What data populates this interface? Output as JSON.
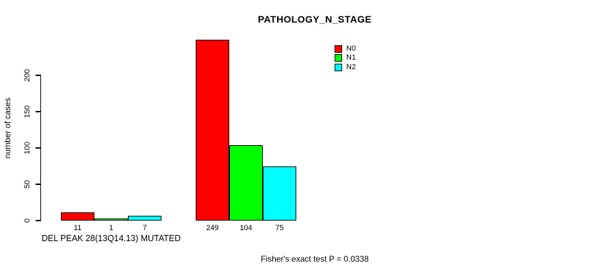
{
  "chart_data": {
    "type": "bar",
    "title": "PATHOLOGY_N_STAGE",
    "ylabel": "number of cases",
    "xlabel": "",
    "group_axis_label": "DEL PEAK 28(13Q14.13) MUTATED",
    "footnote": "Fisher's exact test P = 0.0338",
    "yticks": [
      0,
      50,
      100,
      150,
      200
    ],
    "ylim": [
      0,
      260
    ],
    "grid": false,
    "legend_position": "top-right",
    "series_names": [
      "N0",
      "N1",
      "N2"
    ],
    "series_colors": [
      "#FF0000",
      "#00FF00",
      "#00FFFF"
    ],
    "groups": [
      {
        "axis_label": "DEL PEAK 28(13Q14.13) MUTATED",
        "values": [
          11,
          1,
          7
        ]
      },
      {
        "axis_label": "",
        "values": [
          249,
          104,
          75
        ]
      }
    ],
    "bar_value_labels_shown": true
  },
  "colors": {
    "background": "#FFFFFF",
    "axis": "#000000",
    "text": "#000000"
  }
}
